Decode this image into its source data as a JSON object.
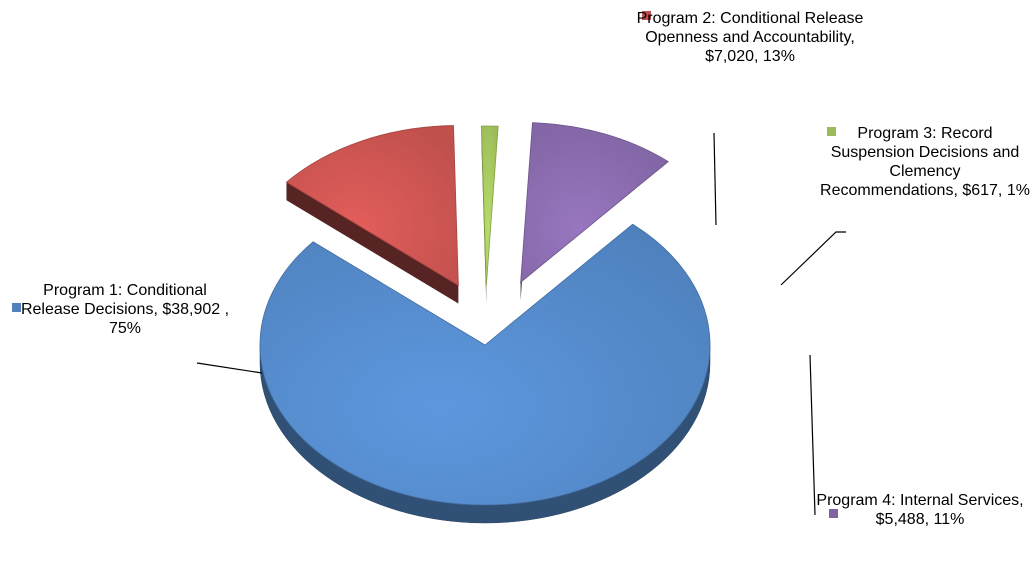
{
  "chart_data": {
    "type": "pie",
    "title": "",
    "slices": [
      {
        "id": "p1",
        "label": "Program 1: Conditional Release Decisions, $38,902 , 75%",
        "value": 38902,
        "percent": 75,
        "color": "#4f81bd"
      },
      {
        "id": "p2",
        "label": "Program 2: Conditional Release Openness and Accountability, $7,020, 13%",
        "value": 7020,
        "percent": 13,
        "color": "#c0504d"
      },
      {
        "id": "p3",
        "label": "Program 3: Record Suspension Decisions and Clemency Recommendations, $617, 1%",
        "value": 617,
        "percent": 1,
        "color": "#9bbb59"
      },
      {
        "id": "p4",
        "label": "Program 4: Internal Services, $5,488, 11%",
        "value": 5488,
        "percent": 11,
        "color": "#8064a2"
      }
    ]
  }
}
